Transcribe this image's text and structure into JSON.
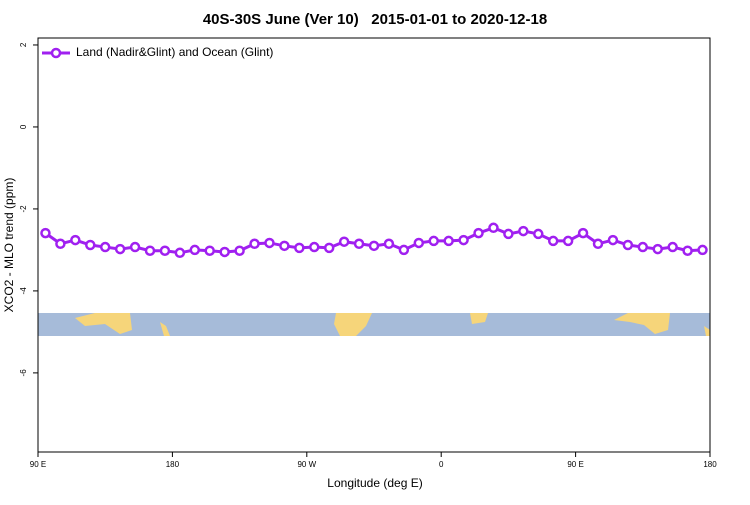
{
  "chart_data": {
    "type": "line",
    "title": "40S-30S June (Ver 10)   2015-01-01 to 2020-12-18",
    "xlabel": "Longitude (deg E)",
    "ylabel": "XCO2 - MLO trend (ppm)",
    "x": [
      95,
      105,
      115,
      125,
      135,
      145,
      155,
      165,
      175,
      185,
      195,
      205,
      215,
      225,
      235,
      245,
      255,
      265,
      275,
      285,
      295,
      305,
      315,
      325,
      335,
      345,
      355,
      365,
      375,
      385,
      395,
      405,
      415,
      425,
      435,
      445,
      455,
      465,
      475,
      485,
      495,
      505,
      515,
      525,
      535
    ],
    "series": [
      {
        "name": "Land (Nadir&Glint) and Ocean (Glint)",
        "color": "#a020f0",
        "values": [
          -2.59,
          -2.85,
          -2.76,
          -2.88,
          -2.93,
          -2.98,
          -2.93,
          -3.02,
          -3.02,
          -3.07,
          -3.0,
          -3.02,
          -3.05,
          -3.02,
          -2.85,
          -2.83,
          -2.9,
          -2.95,
          -2.93,
          -2.95,
          -2.8,
          -2.85,
          -2.9,
          -2.85,
          -3.0,
          -2.83,
          -2.78,
          -2.78,
          -2.76,
          -2.59,
          -2.46,
          -2.61,
          -2.54,
          -2.61,
          -2.78,
          -2.78,
          -2.59,
          -2.85,
          -2.76,
          -2.88,
          -2.93,
          -2.98,
          -2.93,
          -3.02,
          -3.0
        ]
      }
    ],
    "xlim": [
      90,
      540
    ],
    "xticks": [
      {
        "value": 90,
        "label": "90 E"
      },
      {
        "value": 180,
        "label": "180"
      },
      {
        "value": 270,
        "label": "90 W"
      },
      {
        "value": 360,
        "label": "0"
      },
      {
        "value": 450,
        "label": "90 E"
      },
      {
        "value": 540,
        "label": "180"
      }
    ],
    "ylim": [
      -7.93,
      2.17
    ],
    "yticks": [
      2,
      0,
      -2,
      -4,
      -6
    ],
    "legend": "top-left"
  }
}
